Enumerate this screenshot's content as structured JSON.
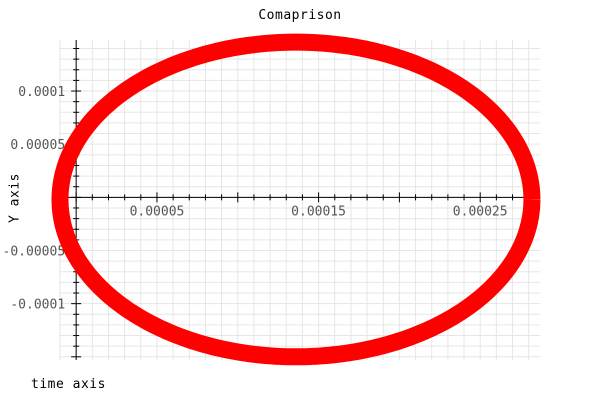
{
  "chart_data": {
    "type": "line",
    "title": "Comaprison",
    "xlabel": "time axis",
    "ylabel": "Y axis",
    "xlim": [
      -1e-05,
      0.000287
    ],
    "ylim": [
      -0.000153,
      0.000148
    ],
    "grid": true,
    "x_ticks": [
      {
        "value": 5e-05,
        "label": "0.00005"
      },
      {
        "value": 0.00015,
        "label": "0.00015"
      },
      {
        "value": 0.00025,
        "label": "0.00025"
      }
    ],
    "y_ticks": [
      {
        "value": 0.0001,
        "label": "0.0001"
      },
      {
        "value": 5e-05,
        "label": "0.00005"
      },
      {
        "value": -5e-05,
        "label": "-0.00005"
      },
      {
        "value": -0.0001,
        "label": "-0.0001"
      }
    ],
    "series": [
      {
        "color": "#ff0000",
        "shape": "ellipse",
        "center": [
          0.000136,
          -2e-06
        ],
        "radius_x": 0.000146,
        "radius_y": 0.000148
      }
    ]
  }
}
